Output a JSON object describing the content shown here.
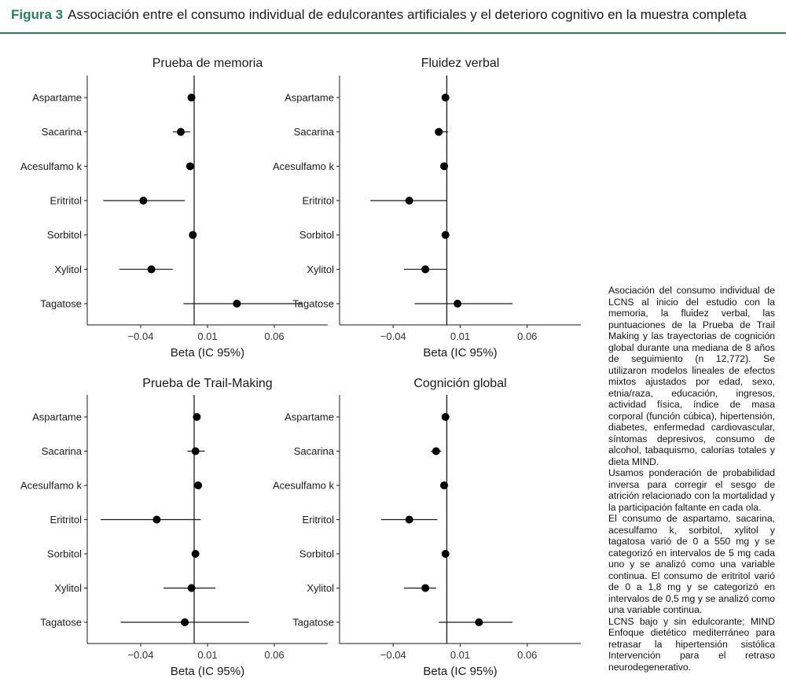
{
  "figure": {
    "label": "Figura 3",
    "title": "Associación entre el consumo individual de edulcorantes artificiales y el deterioro cognitivo en la muestra completa"
  },
  "caption": [
    "Asociación del consumo individual de LCNS al inicio del estudio con la memoria, la fluidez verbal, las puntuaciones de la Prueba de Trail Making y las trayectorias de cognición global durante una mediana de 8 años de seguimiento (n 12,772). Se utilizaron modelos lineales de efectos mixtos ajustados por edad, sexo, etnia/raza, educación, ingresos, actividad física, índice de masa corporal (función cúbica), hipertensión, diabetes, enfermedad cardiovascular, síntomas depresivos, consumo de alcohol, tabaquismo, calorías totales y dieta MIND.",
    "Usamos ponderación de probabilidad inversa para corregir el sesgo de atrición relacionado con la mortalidad y la participación faltante en cada ola.",
    "El consumo de aspartamo, sacarina, acesulfamo k, sorbitol, xylitol y tagatosa varió de 0 a 550 mg y se categorizó en intervalos de 5 mg cada uno y se analizó como una variable continua. El consumo de eritritol varió de 0 a 1,8 mg y se categorizó en intervalos de 0,5 mg y se analizó como una variable continua.",
    "LCNS bajo y sin edulcorante; MIND Enfoque dietético mediterráneo para retrasar la hipertensión sistólica Intervención para el retraso neurodegenerativo."
  ],
  "colors": {
    "accent": "#2e7d5b",
    "axis": "#1a1a1a",
    "point": "#000000"
  },
  "chart_data": [
    {
      "type": "forest",
      "title": "Prueba de memoria",
      "xlabel": "Beta (IC 95%)",
      "xticks": [
        -0.04,
        0.01,
        0.06
      ],
      "xtick_labels": [
        "−0.04",
        "0.01",
        "0.06"
      ],
      "xlim": [
        -0.08,
        0.1
      ],
      "ref_line": 0,
      "categories": [
        "Aspartame",
        "Sacarina",
        "Acesulfamo k",
        "Eritritol",
        "Sorbitol",
        "Xylitol",
        "Tagatose"
      ],
      "estimates": [
        -0.002,
        -0.01,
        -0.003,
        -0.038,
        -0.001,
        -0.032,
        0.032
      ],
      "lower": [
        -0.003,
        -0.016,
        -0.004,
        -0.068,
        -0.002,
        -0.056,
        -0.008
      ],
      "upper": [
        -0.001,
        -0.003,
        -0.002,
        -0.007,
        0.0,
        -0.016,
        0.081
      ]
    },
    {
      "type": "forest",
      "title": "Fluidez verbal",
      "xlabel": "Beta (IC 95%)",
      "xticks": [
        -0.04,
        0.01,
        0.06
      ],
      "xtick_labels": [
        "−0.04",
        "0.01",
        "0.06"
      ],
      "xlim": [
        -0.08,
        0.1
      ],
      "ref_line": 0,
      "categories": [
        "Aspartame",
        "Sacarina",
        "Acesulfamo k",
        "Eritritol",
        "Sorbitol",
        "Xylitol",
        "Tagatose"
      ],
      "estimates": [
        -0.001,
        -0.006,
        -0.002,
        -0.028,
        -0.001,
        -0.016,
        0.008
      ],
      "lower": [
        -0.002,
        -0.008,
        -0.003,
        -0.057,
        -0.002,
        -0.032,
        -0.024
      ],
      "upper": [
        0.0,
        0.001,
        -0.001,
        0.0,
        0.0,
        0.0,
        0.049
      ]
    },
    {
      "type": "forest",
      "title": "Prueba de Trail-Making",
      "xlabel": "Beta (IC 95%)",
      "xticks": [
        -0.04,
        0.01,
        0.06
      ],
      "xtick_labels": [
        "−0.04",
        "0.01",
        "0.06"
      ],
      "xlim": [
        -0.08,
        0.1
      ],
      "ref_line": 0,
      "categories": [
        "Aspartame",
        "Sacarina",
        "Acesulfamo k",
        "Eritritol",
        "Sorbitol",
        "Xylitol",
        "Tagatose"
      ],
      "estimates": [
        0.002,
        0.001,
        0.003,
        -0.028,
        0.001,
        -0.002,
        -0.007
      ],
      "lower": [
        0.001,
        -0.005,
        0.002,
        -0.07,
        0.0,
        -0.023,
        -0.055
      ],
      "upper": [
        0.003,
        0.008,
        0.004,
        0.005,
        0.002,
        0.016,
        0.041
      ]
    },
    {
      "type": "forest",
      "title": "Cognición global",
      "xlabel": "Beta (IC 95%)",
      "xticks": [
        -0.04,
        0.01,
        0.06
      ],
      "xtick_labels": [
        "−0.04",
        "0.01",
        "0.06"
      ],
      "xlim": [
        -0.08,
        0.1
      ],
      "ref_line": 0,
      "categories": [
        "Aspartame",
        "Sacarina",
        "Acesulfamo k",
        "Eritritol",
        "Sorbitol",
        "Xylitol",
        "Tagatose"
      ],
      "estimates": [
        -0.001,
        -0.008,
        -0.002,
        -0.028,
        -0.001,
        -0.016,
        0.024
      ],
      "lower": [
        -0.002,
        -0.012,
        -0.003,
        -0.049,
        -0.002,
        -0.032,
        -0.006
      ],
      "upper": [
        0.0,
        -0.004,
        -0.001,
        -0.007,
        0.0,
        -0.008,
        0.049
      ]
    }
  ]
}
